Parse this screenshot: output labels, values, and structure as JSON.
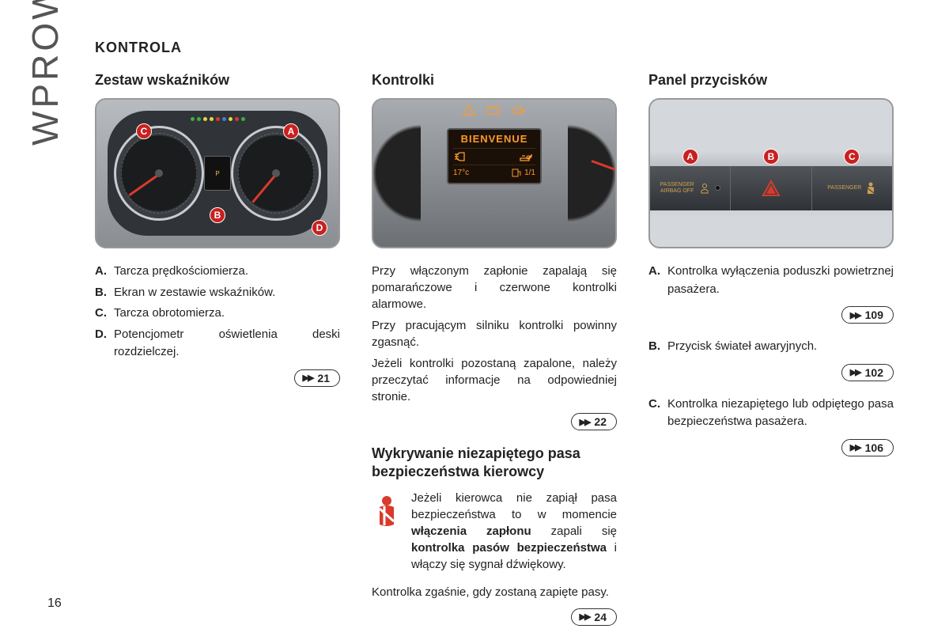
{
  "page_number": "16",
  "sidebar_title": "WPROWADZENIE",
  "section_title": "KONTROLA",
  "colors": {
    "marker_bg": "#c92020",
    "needle": "#d93a2b",
    "lcd_text": "#ff9a2a",
    "led_colors": [
      "#3cb043",
      "#3cb043",
      "#e8d34a",
      "#e8d34a",
      "#d93a2b",
      "#3c82d9",
      "#e8d34a",
      "#d93a2b",
      "#3cb043"
    ]
  },
  "col1": {
    "heading": "Zestaw wskaźników",
    "markers": {
      "A": "A",
      "B": "B",
      "C": "C",
      "D": "D"
    },
    "gauge_center_text": "P",
    "defs": [
      {
        "label": "A.",
        "text": "Tarcza prędkościomierza."
      },
      {
        "label": "B.",
        "text": "Ekran w zestawie wskaźników."
      },
      {
        "label": "C.",
        "text": "Tarcza obrotomierza."
      },
      {
        "label": "D.",
        "text": "Potencjometr oświetlenia deski rozdzielczej."
      }
    ],
    "ref": "21"
  },
  "col2": {
    "heading": "Kontrolki",
    "lcd": {
      "title": "BIENVENUE",
      "temp": "17°c",
      "fuel": "1/1"
    },
    "paras": [
      "Przy włączonym zapłonie zapalają się pomarańczowe i czerwone kontrolki alarmowe.",
      "Przy pracującym silniku kontrolki powinny zgasnąć.",
      "Jeżeli kontrolki pozostaną zapalone, należy przeczytać informacje na odpowiedniej stronie."
    ],
    "ref1": "22",
    "subheading": "Wykrywanie niezapiętego pasa bezpieczeństwa kierowcy",
    "seatbelt_pre": "Jeżeli kierowca nie zapiął pasa bezpieczeństwa to w momencie ",
    "seatbelt_b1": "włączenia zapłonu",
    "seatbelt_mid": " zapali się ",
    "seatbelt_b2": "kontrolka pasów bezpieczeństwa",
    "seatbelt_post": " i włączy się sygnał dźwiękowy.",
    "seatbelt_after": "Kontrolka zgaśnie, gdy zostaną zapięte pasy.",
    "ref2": "24"
  },
  "col3": {
    "heading": "Panel przycisków",
    "markers": {
      "A": "A",
      "B": "B",
      "C": "C"
    },
    "panel_labels": {
      "left": "PASSENGER\nAIRBAG OFF",
      "right": "PASSENGER"
    },
    "items": [
      {
        "label": "A.",
        "text": "Kontrolka wyłączenia poduszki powietrznej pasażera.",
        "ref": "109"
      },
      {
        "label": "B.",
        "text": "Przycisk świateł awaryjnych.",
        "ref": "102"
      },
      {
        "label": "C.",
        "text": "Kontrolka niezapiętego lub odpiętego pasa bezpieczeństwa pasażera.",
        "ref": "106"
      }
    ]
  }
}
